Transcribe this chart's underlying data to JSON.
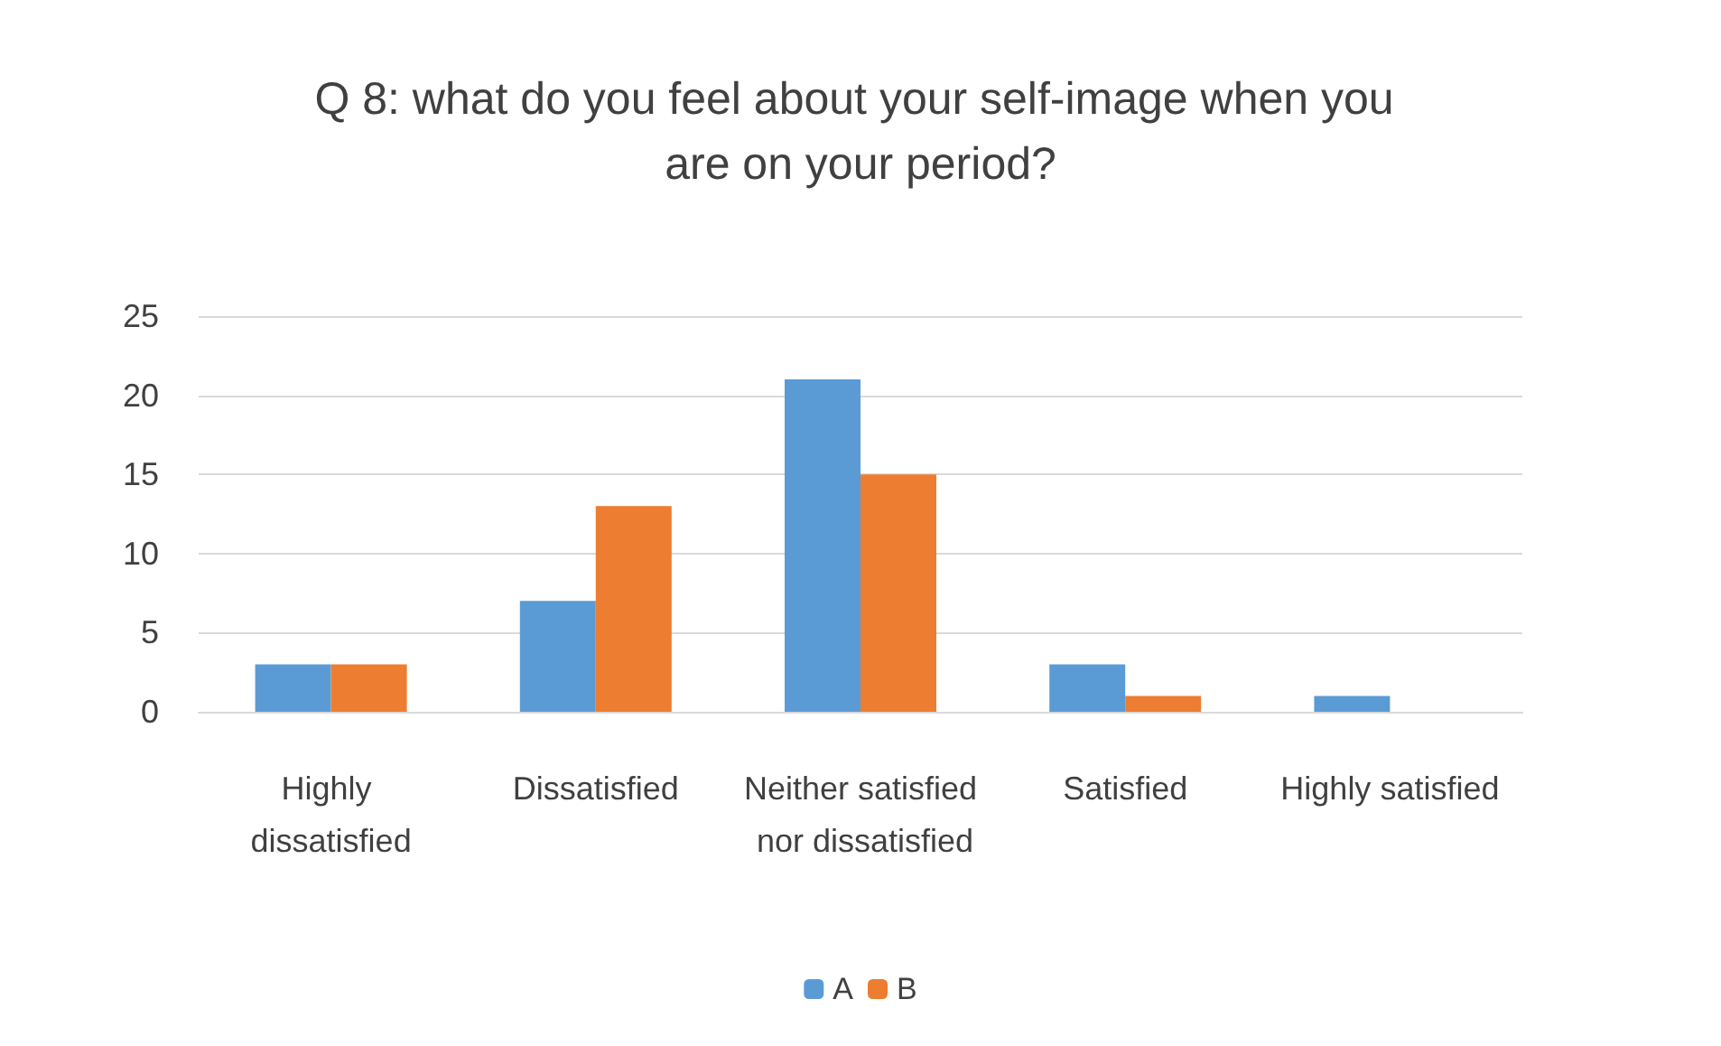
{
  "chart_data": {
    "type": "bar",
    "title": "Q 8: what do you feel about your self-image when you are on your period?",
    "categories": [
      "Highly dissatisfied",
      "Dissatisfied",
      "Neither satisfied nor dissatisfied",
      "Satisfied",
      "Highly satisfied"
    ],
    "series": [
      {
        "name": "A",
        "color": "#5b9bd5",
        "values": [
          3,
          7,
          21,
          3,
          1
        ]
      },
      {
        "name": "B",
        "color": "#ed7d31",
        "values": [
          3,
          13,
          15,
          1,
          0
        ]
      }
    ],
    "ylim": [
      0,
      25
    ],
    "yticks": [
      0,
      5,
      10,
      15,
      20,
      25
    ],
    "grid": "y",
    "legend": "bottom"
  }
}
